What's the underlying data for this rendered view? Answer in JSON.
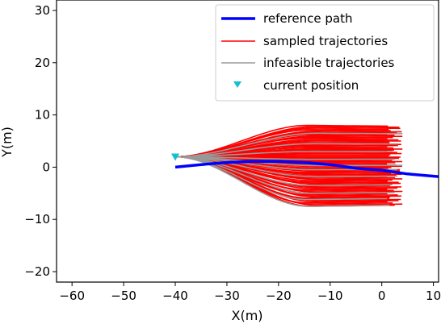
{
  "chart_data": {
    "type": "line",
    "title": "",
    "xlabel": "X(m)",
    "ylabel": "Y(m)",
    "xlim": [
      -63,
      11
    ],
    "ylim": [
      -22,
      32
    ],
    "xticks": [
      -60,
      -50,
      -40,
      -30,
      -20,
      -10,
      0,
      10
    ],
    "yticks": [
      -20,
      -10,
      0,
      10,
      20,
      30
    ],
    "xtick_labels": [
      "−60",
      "−50",
      "−40",
      "−30",
      "−20",
      "−10",
      "0",
      "10"
    ],
    "ytick_labels": [
      "−20",
      "−10",
      "0",
      "10",
      "20",
      "30"
    ],
    "grid": false,
    "legend_position": "top-right",
    "colors": {
      "reference": "#0000ff",
      "sampled": "#ff0000",
      "infeasible": "#999999",
      "current": "#17becf"
    },
    "series": [
      {
        "name": "reference path",
        "type": "line",
        "x": [
          -40,
          -35,
          -30,
          -25,
          -20,
          -15,
          -10,
          -5,
          0,
          5,
          11
        ],
        "y": [
          0,
          0.5,
          0.9,
          1.1,
          1.1,
          0.9,
          0.5,
          -0.2,
          -0.6,
          -1.3,
          -1.8
        ]
      },
      {
        "name": "sampled trajectories",
        "type": "fan",
        "start": [
          -40,
          2
        ],
        "converge_x": -28,
        "min_end_y": -7.5,
        "max_end_y": 8.0,
        "end_x_range": [
          1,
          4
        ]
      },
      {
        "name": "infeasible trajectories",
        "type": "lines",
        "end_points": [
          [
            4,
            6.5
          ],
          [
            3,
            4.5
          ],
          [
            2,
            3.0
          ],
          [
            2.5,
            1.5
          ],
          [
            4,
            0.3
          ],
          [
            3,
            -0.5
          ],
          [
            3,
            -1.8
          ],
          [
            2,
            -3.5
          ],
          [
            2.5,
            -5.0
          ],
          [
            1,
            -6.2
          ],
          [
            1.5,
            -7.5
          ]
        ]
      },
      {
        "name": "current position",
        "type": "marker",
        "x": -40,
        "y": 2
      }
    ],
    "legend": [
      "reference path",
      "sampled trajectories",
      "infeasible trajectories",
      "current position"
    ]
  }
}
